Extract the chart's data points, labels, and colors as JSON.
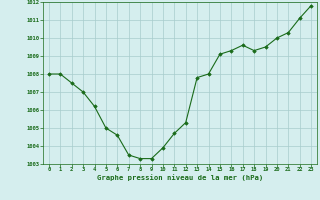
{
  "x": [
    0,
    1,
    2,
    3,
    4,
    5,
    6,
    7,
    8,
    9,
    10,
    11,
    12,
    13,
    14,
    15,
    16,
    17,
    18,
    19,
    20,
    21,
    22,
    23
  ],
  "y": [
    1008.0,
    1008.0,
    1007.5,
    1007.0,
    1006.2,
    1005.0,
    1004.6,
    1003.5,
    1003.3,
    1003.3,
    1003.9,
    1004.7,
    1005.3,
    1007.8,
    1008.0,
    1009.1,
    1009.3,
    1009.6,
    1009.3,
    1009.5,
    1010.0,
    1010.3,
    1011.1,
    1011.8
  ],
  "ylim": [
    1003,
    1012
  ],
  "yticks": [
    1003,
    1004,
    1005,
    1006,
    1007,
    1008,
    1009,
    1010,
    1011,
    1012
  ],
  "xticks": [
    0,
    1,
    2,
    3,
    4,
    5,
    6,
    7,
    8,
    9,
    10,
    11,
    12,
    13,
    14,
    15,
    16,
    17,
    18,
    19,
    20,
    21,
    22,
    23
  ],
  "xlabel": "Graphe pression niveau de la mer (hPa)",
  "line_color": "#1a6b1a",
  "marker": "D",
  "marker_size": 1.8,
  "bg_color": "#d5eeee",
  "grid_color": "#a8cccc",
  "label_color": "#1a6b1a",
  "linewidth": 0.8
}
